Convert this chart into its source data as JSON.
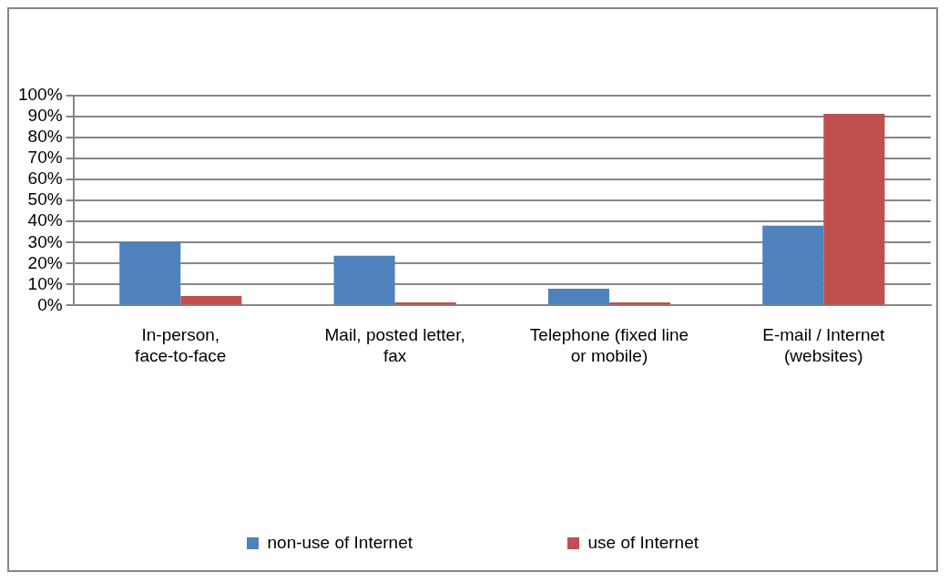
{
  "chart_data": {
    "type": "bar",
    "categories": [
      "In-person, face-to-face",
      "Mail, posted letter, fax",
      "Telephone (fixed line or mobile)",
      "E-mail / Internet (websites)"
    ],
    "series": [
      {
        "name": "non-use of Internet",
        "color": "#4f81bd",
        "values": [
          30.3,
          23.7,
          8,
          38
        ]
      },
      {
        "name": "use of Internet",
        "color": "#c0504d",
        "values": [
          4.5,
          1.5,
          1.5,
          91.3
        ]
      }
    ],
    "ylim": [
      0,
      100
    ],
    "yticks": [
      {
        "value": 0,
        "label": "0%"
      },
      {
        "value": 10,
        "label": "10%"
      },
      {
        "value": 20,
        "label": "20%"
      },
      {
        "value": 30,
        "label": "30%"
      },
      {
        "value": 40,
        "label": "40%"
      },
      {
        "value": 50,
        "label": "50%"
      },
      {
        "value": 60,
        "label": "60%"
      },
      {
        "value": 70,
        "label": "70%"
      },
      {
        "value": 80,
        "label": "80%"
      },
      {
        "value": 90,
        "label": "90%"
      },
      {
        "value": 100,
        "label": "100%"
      }
    ],
    "grid": "y",
    "legend": "bottom"
  }
}
